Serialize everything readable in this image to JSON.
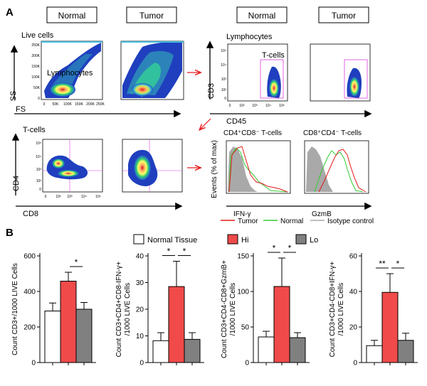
{
  "panel_a": {
    "label": "A",
    "condition_boxes": [
      "Normal",
      "Tumor",
      "Normal",
      "Tumor"
    ],
    "plot1": {
      "gate_title": "Live cells",
      "gate_label": "Lymphocytes",
      "y_axis": "SS",
      "x_axis": "FS",
      "y_ticks": [
        "250K",
        "200K",
        "150K",
        "100K",
        "50K",
        "0"
      ],
      "x_ticks": [
        "0",
        "50K",
        "100K",
        "150K",
        "200K",
        "250K"
      ]
    },
    "plot2": {
      "gate_title": "Lymphocytes",
      "gate_label": "T-cells",
      "y_axis": "CD3",
      "x_axis": "CD45",
      "y_ticks": [
        "10⁵",
        "10⁴",
        "10³",
        "10²",
        "0"
      ],
      "x_ticks": [
        "0",
        "10²",
        "10³",
        "10⁴",
        "10⁵"
      ]
    },
    "plot3": {
      "gate_title": "T-cells",
      "y_axis": "CD4",
      "x_axis": "CD8",
      "y_ticks": [
        "10⁵",
        "10⁴",
        "10³",
        "10²",
        "0"
      ],
      "x_ticks": [
        "0",
        "10²",
        "10³",
        "10⁴",
        "10⁵"
      ]
    },
    "histograms": {
      "title_left": "CD4⁺CD8⁻ T-cells",
      "title_right": "CD8⁺CD4⁻ T-cells",
      "y_axis": "Events (% of max)",
      "x_left": "IFN-γ",
      "x_right": "GzmB"
    },
    "legend": [
      {
        "label": "Tumor",
        "color": "#e31a1c"
      },
      {
        "label": "Normal",
        "color": "#33cc33"
      },
      {
        "label": "Isotype control",
        "color": "#a9a9a9"
      }
    ]
  },
  "panel_b": {
    "label": "B",
    "legend": [
      {
        "label": "Normal Tissue",
        "color": "#ffffff"
      },
      {
        "label": "Hi",
        "color": "#f04a4a"
      },
      {
        "label": "Lo",
        "color": "#808080"
      }
    ]
  },
  "chart_data": [
    {
      "type": "bar",
      "ylabel": "Count CD3+/1000 LIVE Cells",
      "categories": [
        "Normal Tissue",
        "Hi",
        "Lo"
      ],
      "values": [
        290,
        458,
        300
      ],
      "errors": [
        45,
        50,
        38
      ],
      "ylim": [
        0,
        600
      ],
      "yticks": [
        0,
        200,
        400,
        600
      ],
      "significance": [
        {
          "from": 1,
          "to": 2,
          "label": "*"
        }
      ]
    },
    {
      "type": "bar",
      "ylabel": "Count CD3+CD4+CD8-IFN-γ+ /1000 LIVE Cells",
      "categories": [
        "Normal Tissue",
        "Hi",
        "Lo"
      ],
      "values": [
        8.2,
        28.5,
        8.7
      ],
      "errors": [
        3,
        9.5,
        2.5
      ],
      "ylim": [
        0,
        40
      ],
      "yticks": [
        0,
        10,
        20,
        30,
        40
      ],
      "significance": [
        {
          "from": 0,
          "to": 1,
          "label": "*"
        },
        {
          "from": 1,
          "to": 2,
          "label": "*"
        }
      ]
    },
    {
      "type": "bar",
      "ylabel": "Count CD3+CD4-CD8+GzmB+ /1000 LIVE Cells",
      "categories": [
        "Normal Tissue",
        "Hi",
        "Lo"
      ],
      "values": [
        36,
        107,
        35
      ],
      "errors": [
        8,
        40,
        7
      ],
      "ylim": [
        0,
        150
      ],
      "yticks": [
        0,
        50,
        100,
        150
      ],
      "significance": [
        {
          "from": 0,
          "to": 1,
          "label": "*"
        },
        {
          "from": 1,
          "to": 2,
          "label": "*"
        }
      ]
    },
    {
      "type": "bar",
      "ylabel": "Count CD3+CD4-CD8+IFN-γ+ /1000 LIVE Cells",
      "categories": [
        "Normal Tissue",
        "Hi",
        "Lo"
      ],
      "values": [
        9.5,
        39.5,
        12.5
      ],
      "errors": [
        3,
        10.5,
        4
      ],
      "ylim": [
        0,
        60
      ],
      "yticks": [
        0,
        20,
        40,
        60
      ],
      "significance": [
        {
          "from": 0,
          "to": 1,
          "label": "**"
        },
        {
          "from": 1,
          "to": 2,
          "label": "*"
        }
      ]
    }
  ]
}
